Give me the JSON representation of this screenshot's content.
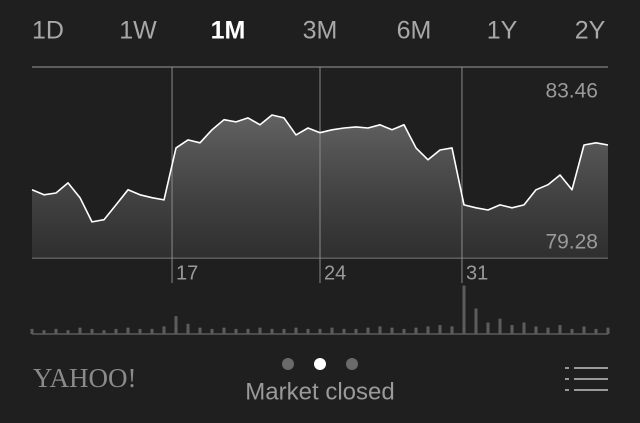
{
  "tabs": [
    "1D",
    "1W",
    "1M",
    "3M",
    "6M",
    "1Y",
    "2Y"
  ],
  "selected_tab": 2,
  "chart_data": {
    "type": "line",
    "color": "#ffffff",
    "x": [
      0,
      1,
      2,
      3,
      4,
      5,
      6,
      7,
      8,
      9,
      10,
      11,
      12,
      13,
      14,
      15,
      16,
      17,
      18,
      19,
      20,
      21,
      22,
      23,
      24,
      25,
      26,
      27,
      28,
      29,
      30,
      31,
      32,
      33,
      34,
      35,
      36,
      37,
      38,
      39,
      40,
      41,
      42,
      43,
      44,
      45,
      46,
      47,
      48
    ],
    "values": [
      80.75,
      80.61,
      80.66,
      80.94,
      80.53,
      79.86,
      79.92,
      80.33,
      80.75,
      80.61,
      80.53,
      80.47,
      81.91,
      82.13,
      82.05,
      82.41,
      82.69,
      82.63,
      82.74,
      82.55,
      82.82,
      82.74,
      82.27,
      82.46,
      82.33,
      82.41,
      82.46,
      82.49,
      82.46,
      82.55,
      82.41,
      82.55,
      81.91,
      81.58,
      81.85,
      81.91,
      80.33,
      80.25,
      80.19,
      80.33,
      80.25,
      80.33,
      80.75,
      80.89,
      81.16,
      80.75,
      81.99,
      82.05,
      81.99
    ],
    "volumes": [
      4,
      3,
      4,
      3,
      5,
      4,
      3,
      4,
      5,
      4,
      4,
      6,
      14,
      8,
      5,
      4,
      5,
      4,
      4,
      5,
      4,
      4,
      5,
      4,
      4,
      5,
      4,
      4,
      5,
      6,
      5,
      4,
      5,
      6,
      7,
      6,
      38,
      20,
      9,
      12,
      7,
      9,
      6,
      5,
      7,
      4,
      6,
      4,
      5
    ],
    "xlim": [
      0,
      48
    ],
    "ylim": [
      78.86,
      84.15
    ],
    "volume_ylim": [
      0,
      40
    ],
    "xticks": [
      {
        "value": 11.67,
        "label": "17"
      },
      {
        "value": 24,
        "label": "24"
      },
      {
        "value": 35.83,
        "label": "31"
      }
    ],
    "yticks": [
      83.46,
      79.28
    ]
  },
  "footer": {
    "brand": "YAHOO!",
    "status": "Market closed",
    "page_count": 3,
    "current_page": 1
  }
}
